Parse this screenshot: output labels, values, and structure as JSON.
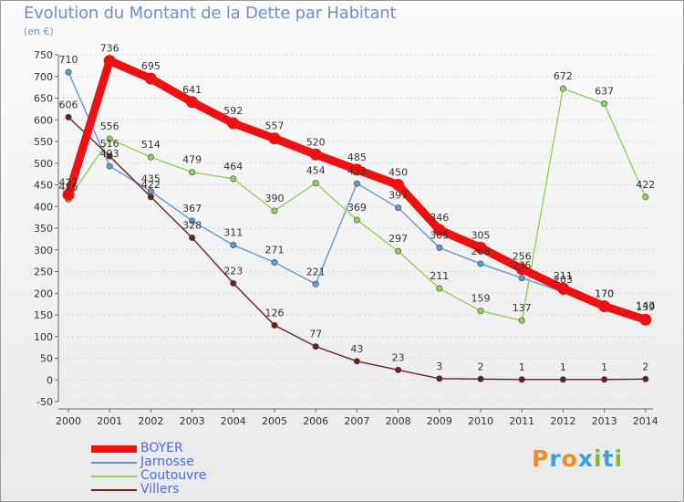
{
  "title": "Evolution du Montant de la Dette par Habitant",
  "subtitle": "(en €)",
  "logo": {
    "text": "Proxiti",
    "colors": [
      "#f28c1d",
      "#3aa0dc",
      "#f28c1d",
      "#3aa0dc",
      "#7fbf3f",
      "#3aa0dc",
      "#7fbf3f"
    ]
  },
  "chart_data": {
    "type": "line",
    "title": "Evolution du Montant de la Dette par Habitant",
    "ylabel": "(en €)",
    "x": [
      2000,
      2001,
      2002,
      2003,
      2004,
      2005,
      2006,
      2007,
      2008,
      2009,
      2010,
      2011,
      2012,
      2013,
      2014
    ],
    "ylim": [
      -50,
      750
    ],
    "yticks": [
      -50,
      0,
      50,
      100,
      150,
      200,
      250,
      300,
      350,
      400,
      450,
      500,
      550,
      600,
      650,
      700,
      750
    ],
    "grid": false,
    "legend_position": "bottom-left",
    "series": [
      {
        "name": "Jarnosse",
        "color": "#5b9bd5",
        "values": [
          710,
          493,
          435,
          367,
          311,
          271,
          221,
          453,
          397,
          305,
          268,
          235,
          203,
          170,
          143
        ],
        "labels": [
          "710",
          "493",
          "435",
          "367",
          "311",
          "271",
          "221",
          "453",
          "397",
          "305",
          "268",
          "235",
          "203",
          "170",
          "143"
        ]
      },
      {
        "name": "Coutouvre",
        "color": "#8fd15a",
        "values": [
          416,
          556,
          514,
          479,
          464,
          390,
          454,
          369,
          297,
          211,
          159,
          137,
          672,
          637,
          422
        ],
        "labels": [
          "416",
          "556",
          "514",
          "479",
          "464",
          "390",
          "454",
          "369",
          "297",
          "211",
          "159",
          "137",
          "672",
          "637",
          "422"
        ]
      },
      {
        "name": "Villers",
        "color": "#6b2020",
        "values": [
          606,
          516,
          422,
          328,
          223,
          126,
          77,
          43,
          23,
          3,
          2,
          1,
          1,
          1,
          2
        ],
        "labels": [
          "606",
          "516",
          "422",
          "328",
          "223",
          "126",
          "77",
          "43",
          "23",
          "3",
          "2",
          "1",
          "1",
          "1",
          "2"
        ]
      },
      {
        "name": "BOYER",
        "color": "#ee1111",
        "values": [
          427,
          736,
          695,
          641,
          592,
          557,
          520,
          485,
          450,
          346,
          305,
          256,
          211,
          170,
          139
        ],
        "labels": [
          "427",
          "736",
          "695",
          "641",
          "592",
          "557",
          "520",
          "485",
          "450",
          "346",
          "305",
          "256",
          "211",
          "170",
          "139"
        ]
      }
    ],
    "legend": [
      "BOYER",
      "Jarnosse",
      "Coutouvre",
      "Villers"
    ]
  }
}
